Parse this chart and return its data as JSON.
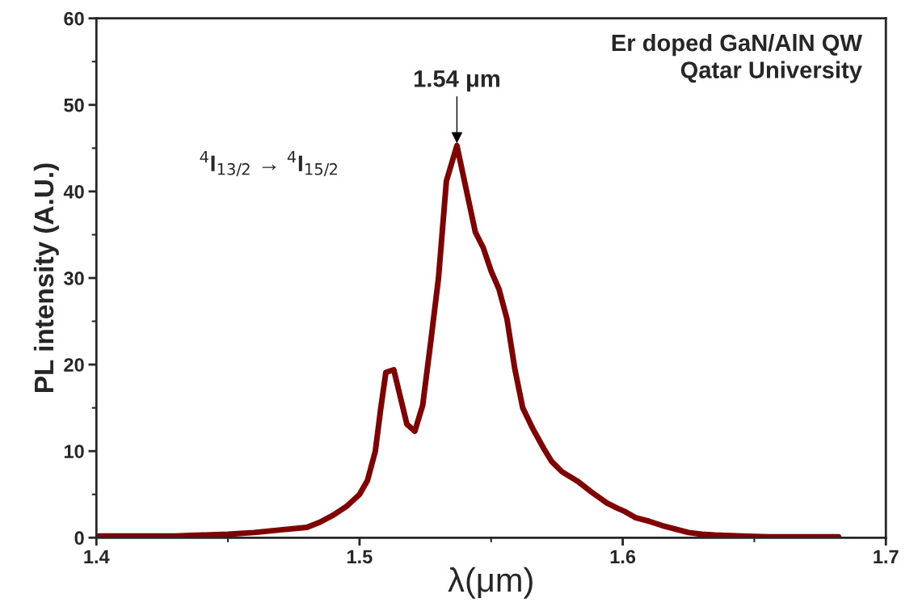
{
  "chart_data": {
    "type": "line",
    "xlabel": "λ(μm)",
    "ylabel": "PL intensity (A.U.)",
    "xlim": [
      1.4,
      1.7
    ],
    "xticks": [
      1.4,
      1.5,
      1.6,
      1.7
    ],
    "ylim": [
      0,
      60
    ],
    "yticks": [
      0,
      10,
      20,
      30,
      40,
      50,
      60
    ],
    "grid": false,
    "marker": "none",
    "line_style": "solid",
    "annotations": [
      "Er doped GaN/AlN QW\nQatar University",
      {
        "text": "1.54 μm",
        "x": 1.537,
        "y": 45.3
      },
      "$^{4}$I$_{13/2}$ → $^{4}$I$_{15/2}$"
    ],
    "series": [
      {
        "color": "#800000",
        "x": [
          1.401,
          1.41,
          1.42,
          1.43,
          1.44,
          1.45,
          1.46,
          1.47,
          1.48,
          1.485,
          1.49,
          1.495,
          1.5,
          1.503,
          1.506,
          1.508,
          1.51,
          1.513,
          1.518,
          1.521,
          1.524,
          1.527,
          1.53,
          1.533,
          1.537,
          1.54,
          1.544,
          1.547,
          1.55,
          1.553,
          1.556,
          1.559,
          1.562,
          1.566,
          1.57,
          1.573,
          1.577,
          1.583,
          1.588,
          1.594,
          1.598,
          1.601,
          1.605,
          1.61,
          1.615,
          1.62,
          1.625,
          1.63,
          1.635,
          1.645,
          1.655,
          1.665,
          1.675,
          1.682
        ],
        "values": [
          0.2,
          0.2,
          0.2,
          0.2,
          0.3,
          0.4,
          0.6,
          0.9,
          1.2,
          1.8,
          2.6,
          3.6,
          5.0,
          6.6,
          10,
          14.8,
          19.1,
          19.4,
          13.1,
          12.3,
          15.3,
          22.5,
          30,
          41.2,
          45.3,
          41,
          35.3,
          33.5,
          30.8,
          28.7,
          25.3,
          19.5,
          15,
          12.5,
          10.3,
          8.8,
          7.6,
          6.5,
          5.3,
          4.0,
          3.4,
          3.0,
          2.3,
          1.9,
          1.4,
          1.0,
          0.6,
          0.4,
          0.3,
          0.2,
          0.1,
          0.1,
          0.1,
          0.1
        ]
      }
    ]
  }
}
